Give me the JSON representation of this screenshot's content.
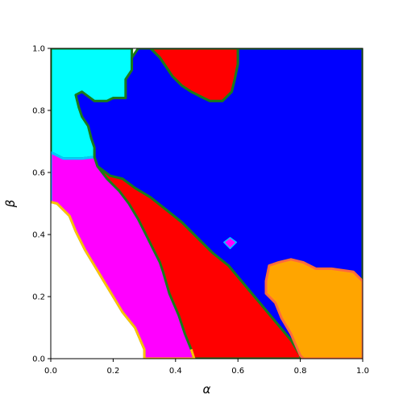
{
  "chart_data": {
    "type": "heatmap",
    "title": "",
    "xlabel": "α",
    "ylabel": "β",
    "xlim": [
      0,
      1
    ],
    "ylim": [
      0,
      1
    ],
    "xticks": [
      "0.0",
      "0.2",
      "0.4",
      "0.6",
      "0.8",
      "1.0"
    ],
    "yticks": [
      "0.0",
      "0.2",
      "0.4",
      "0.6",
      "0.8",
      "1.0"
    ],
    "grid": false,
    "colors": {
      "background": "#ffffff",
      "cyan": "#00ffff",
      "magenta": "#ff00ff",
      "red": "#ff0000",
      "blue": "#0000ff",
      "orange": "#ffa500",
      "green_border": "#1a7a1a",
      "gold_border": "#ffbf00"
    },
    "regions": [
      {
        "color": "cyan",
        "points": [
          [
            0,
            1
          ],
          [
            0.26,
            1
          ],
          [
            0.26,
            0.93
          ],
          [
            0.24,
            0.9
          ],
          [
            0.24,
            0.84
          ],
          [
            0.2,
            0.84
          ],
          [
            0.18,
            0.83
          ],
          [
            0.14,
            0.83
          ],
          [
            0.1,
            0.86
          ],
          [
            0.08,
            0.85
          ],
          [
            0.09,
            0.81
          ],
          [
            0.1,
            0.78
          ],
          [
            0.12,
            0.75
          ],
          [
            0.13,
            0.71
          ],
          [
            0.14,
            0.68
          ],
          [
            0.14,
            0.65
          ],
          [
            0.1,
            0.645
          ],
          [
            0.04,
            0.645
          ],
          [
            0,
            0.665
          ]
        ]
      },
      {
        "color": "magenta",
        "points": [
          [
            0,
            0.665
          ],
          [
            0.04,
            0.645
          ],
          [
            0.1,
            0.645
          ],
          [
            0.14,
            0.65
          ],
          [
            0.15,
            0.62
          ],
          [
            0.18,
            0.58
          ],
          [
            0.22,
            0.54
          ],
          [
            0.25,
            0.5
          ],
          [
            0.28,
            0.45
          ],
          [
            0.3,
            0.41
          ],
          [
            0.33,
            0.35
          ],
          [
            0.35,
            0.31
          ],
          [
            0.36,
            0.28
          ],
          [
            0.38,
            0.21
          ],
          [
            0.41,
            0.14
          ],
          [
            0.43,
            0.08
          ],
          [
            0.45,
            0.03
          ],
          [
            0.46,
            0
          ],
          [
            0.3,
            0
          ],
          [
            0.3,
            0.03
          ],
          [
            0.27,
            0.1
          ],
          [
            0.23,
            0.15
          ],
          [
            0.2,
            0.2
          ],
          [
            0.17,
            0.25
          ],
          [
            0.14,
            0.3
          ],
          [
            0.11,
            0.35
          ],
          [
            0.08,
            0.41
          ],
          [
            0.06,
            0.46
          ],
          [
            0.02,
            0.5
          ],
          [
            0,
            0.505
          ]
        ]
      },
      {
        "color": "red",
        "points": [
          [
            0.14,
            0.65
          ],
          [
            0.15,
            0.62
          ],
          [
            0.19,
            0.59
          ],
          [
            0.23,
            0.58
          ],
          [
            0.27,
            0.55
          ],
          [
            0.32,
            0.52
          ],
          [
            0.37,
            0.48
          ],
          [
            0.42,
            0.44
          ],
          [
            0.47,
            0.39
          ],
          [
            0.52,
            0.34
          ],
          [
            0.57,
            0.3
          ],
          [
            0.62,
            0.24
          ],
          [
            0.67,
            0.18
          ],
          [
            0.72,
            0.12
          ],
          [
            0.77,
            0.06
          ],
          [
            0.8,
            0.01
          ],
          [
            0.8,
            0
          ],
          [
            0.46,
            0
          ],
          [
            0.45,
            0.03
          ],
          [
            0.43,
            0.08
          ],
          [
            0.41,
            0.14
          ],
          [
            0.38,
            0.21
          ],
          [
            0.36,
            0.28
          ],
          [
            0.35,
            0.31
          ],
          [
            0.33,
            0.35
          ],
          [
            0.3,
            0.41
          ],
          [
            0.28,
            0.45
          ],
          [
            0.25,
            0.5
          ],
          [
            0.22,
            0.54
          ],
          [
            0.18,
            0.58
          ],
          [
            0.15,
            0.62
          ]
        ]
      },
      {
        "color": "red",
        "points": [
          [
            0.32,
            1
          ],
          [
            0.6,
            1
          ],
          [
            0.6,
            0.95
          ],
          [
            0.59,
            0.9
          ],
          [
            0.58,
            0.86
          ],
          [
            0.55,
            0.83
          ],
          [
            0.51,
            0.83
          ],
          [
            0.49,
            0.84
          ],
          [
            0.45,
            0.86
          ],
          [
            0.42,
            0.88
          ],
          [
            0.39,
            0.91
          ],
          [
            0.37,
            0.94
          ],
          [
            0.35,
            0.97
          ]
        ]
      },
      {
        "color": "blue",
        "points": [
          [
            0.28,
            1
          ],
          [
            0.32,
            1
          ],
          [
            0.35,
            0.97
          ],
          [
            0.37,
            0.94
          ],
          [
            0.39,
            0.91
          ],
          [
            0.42,
            0.88
          ],
          [
            0.45,
            0.86
          ],
          [
            0.49,
            0.84
          ],
          [
            0.51,
            0.83
          ],
          [
            0.55,
            0.83
          ],
          [
            0.58,
            0.86
          ],
          [
            0.59,
            0.9
          ],
          [
            0.6,
            0.95
          ],
          [
            0.6,
            1
          ],
          [
            1,
            1
          ],
          [
            1,
            0.25
          ],
          [
            0.97,
            0.28
          ],
          [
            0.9,
            0.29
          ],
          [
            0.85,
            0.29
          ],
          [
            0.81,
            0.31
          ],
          [
            0.77,
            0.32
          ],
          [
            0.73,
            0.31
          ],
          [
            0.7,
            0.3
          ],
          [
            0.69,
            0.25
          ],
          [
            0.69,
            0.21
          ],
          [
            0.72,
            0.18
          ],
          [
            0.74,
            0.13
          ],
          [
            0.77,
            0.08
          ],
          [
            0.8,
            0.01
          ],
          [
            0.77,
            0.06
          ],
          [
            0.72,
            0.12
          ],
          [
            0.67,
            0.18
          ],
          [
            0.62,
            0.24
          ],
          [
            0.57,
            0.3
          ],
          [
            0.52,
            0.34
          ],
          [
            0.47,
            0.39
          ],
          [
            0.42,
            0.44
          ],
          [
            0.37,
            0.48
          ],
          [
            0.32,
            0.52
          ],
          [
            0.27,
            0.55
          ],
          [
            0.23,
            0.58
          ],
          [
            0.19,
            0.59
          ],
          [
            0.15,
            0.62
          ],
          [
            0.14,
            0.65
          ],
          [
            0.14,
            0.68
          ],
          [
            0.13,
            0.71
          ],
          [
            0.12,
            0.75
          ],
          [
            0.1,
            0.78
          ],
          [
            0.09,
            0.81
          ],
          [
            0.08,
            0.85
          ],
          [
            0.1,
            0.86
          ],
          [
            0.14,
            0.83
          ],
          [
            0.18,
            0.83
          ],
          [
            0.2,
            0.84
          ],
          [
            0.24,
            0.84
          ],
          [
            0.24,
            0.9
          ],
          [
            0.26,
            0.93
          ],
          [
            0.26,
            0.97
          ]
        ]
      },
      {
        "color": "orange",
        "points": [
          [
            0.7,
            0.3
          ],
          [
            0.73,
            0.31
          ],
          [
            0.77,
            0.32
          ],
          [
            0.81,
            0.31
          ],
          [
            0.85,
            0.29
          ],
          [
            0.9,
            0.29
          ],
          [
            0.97,
            0.28
          ],
          [
            1,
            0.25
          ],
          [
            1,
            0
          ],
          [
            0.81,
            0
          ],
          [
            0.8,
            0.01
          ],
          [
            0.77,
            0.08
          ],
          [
            0.74,
            0.13
          ],
          [
            0.72,
            0.18
          ],
          [
            0.69,
            0.21
          ],
          [
            0.69,
            0.25
          ]
        ]
      },
      {
        "color": "magenta",
        "points": [
          [
            0.575,
            0.39
          ],
          [
            0.595,
            0.375
          ],
          [
            0.575,
            0.355
          ],
          [
            0.555,
            0.375
          ]
        ]
      }
    ]
  }
}
